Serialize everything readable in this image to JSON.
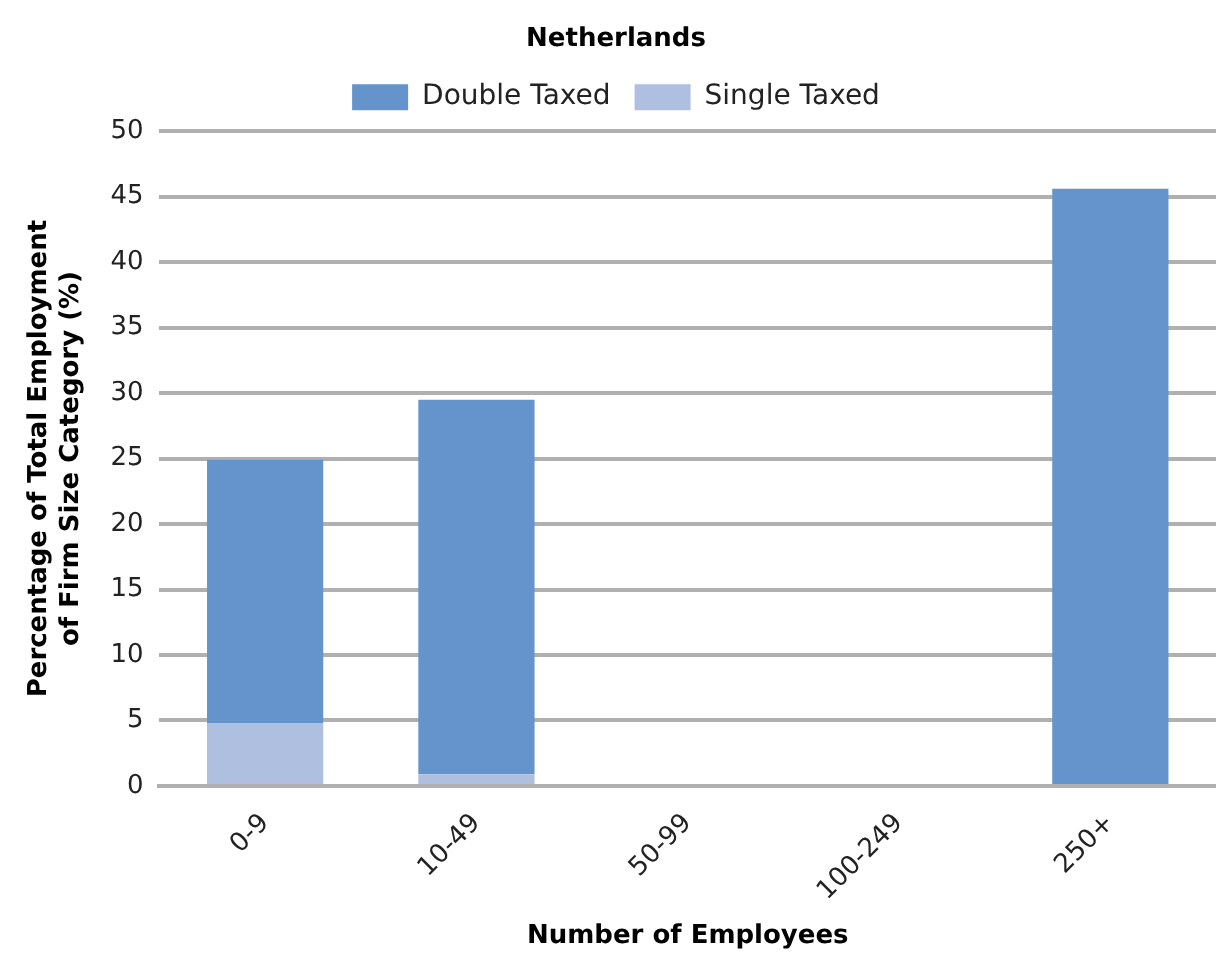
{
  "chart_data": {
    "type": "bar",
    "title": "Netherlands",
    "xlabel": "Number of Employees",
    "ylabel": "Percentage of Total Employment of Firm Size Category (%)",
    "categories": [
      "0-9",
      "10-49",
      "50-99",
      "100-249",
      "250+"
    ],
    "series": [
      {
        "name": "Single Taxed",
        "color": "#aebfe0",
        "values": [
          4.8,
          0.9,
          0,
          0,
          0
        ]
      },
      {
        "name": "Double Taxed",
        "color": "#6593cb",
        "values": [
          20.1,
          28.6,
          0,
          0,
          45.6
        ]
      }
    ],
    "stacked": true,
    "ylim": [
      0,
      50
    ],
    "yticks": [
      0,
      5,
      10,
      15,
      20,
      25,
      30,
      35,
      40,
      45,
      50
    ],
    "grid": "y",
    "legend": "top"
  }
}
